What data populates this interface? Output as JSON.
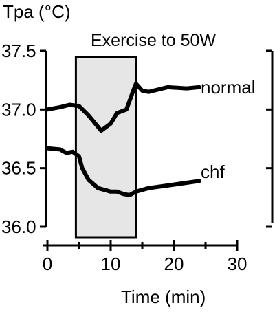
{
  "chart_data": {
    "type": "line",
    "ylabel": "Tpa (°C)",
    "xlabel": "Time (min)",
    "xlim": [
      0,
      30
    ],
    "ylim": [
      36.0,
      37.5
    ],
    "x_ticks": [
      0,
      10,
      20,
      30
    ],
    "y_ticks": [
      "37.5",
      "37.0",
      "36.5",
      "36.0"
    ],
    "annotation": "Exercise to 50W",
    "exercise_interval": [
      4.5,
      14
    ],
    "shading_color": "#e6e6e6",
    "series": [
      {
        "name": "normal",
        "points": [
          [
            0,
            37.0
          ],
          [
            2,
            37.02
          ],
          [
            3.5,
            37.04
          ],
          [
            5,
            37.03
          ],
          [
            6.5,
            36.95
          ],
          [
            8.5,
            36.82
          ],
          [
            10,
            36.88
          ],
          [
            11,
            36.97
          ],
          [
            12.5,
            37.0
          ],
          [
            13.5,
            37.15
          ],
          [
            14,
            37.22
          ],
          [
            15,
            37.16
          ],
          [
            16,
            37.15
          ],
          [
            19,
            37.19
          ],
          [
            22,
            37.18
          ],
          [
            24,
            37.19
          ]
        ]
      },
      {
        "name": "chf",
        "points": [
          [
            0,
            36.67
          ],
          [
            2,
            36.66
          ],
          [
            3,
            36.63
          ],
          [
            4,
            36.64
          ],
          [
            5,
            36.6
          ],
          [
            5.5,
            36.5
          ],
          [
            6.5,
            36.4
          ],
          [
            8,
            36.33
          ],
          [
            10,
            36.3
          ],
          [
            11,
            36.3
          ],
          [
            12,
            36.28
          ],
          [
            13,
            36.27
          ],
          [
            14,
            36.3
          ],
          [
            16,
            36.33
          ],
          [
            20,
            36.36
          ],
          [
            24,
            36.39
          ]
        ]
      }
    ]
  }
}
